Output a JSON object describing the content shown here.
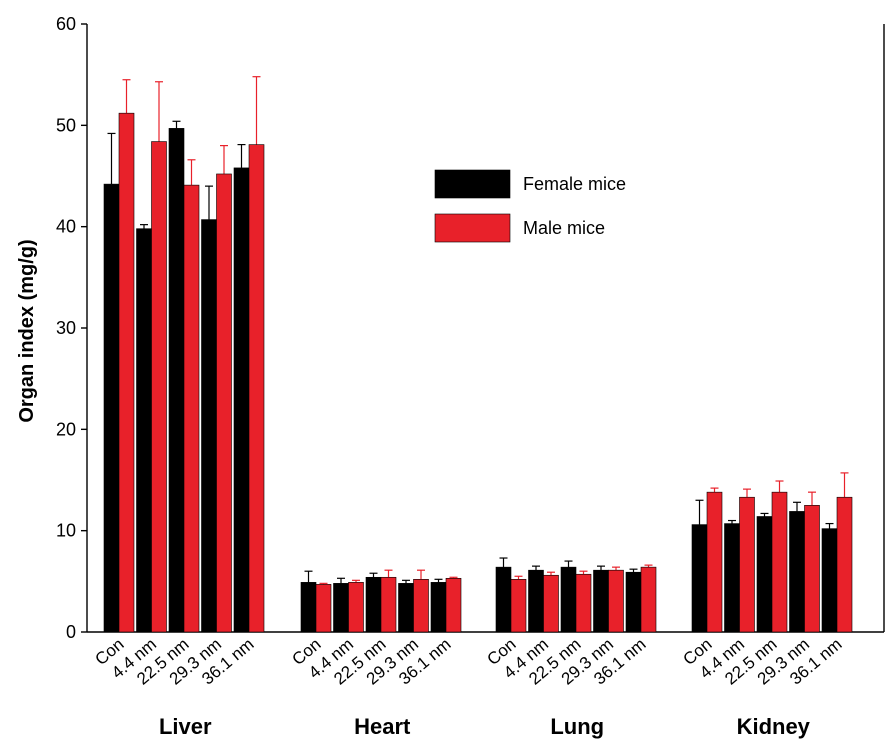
{
  "chart_data": {
    "type": "bar",
    "title": "",
    "xlabel": "",
    "ylabel": "Organ index (mg/g)",
    "ylim": [
      0,
      60
    ],
    "yticks": [
      0,
      10,
      20,
      30,
      40,
      50,
      60
    ],
    "grid": false,
    "legend_position": "upper-middle",
    "groups": [
      "Liver",
      "Heart",
      "Lung",
      "Kidney"
    ],
    "categories": [
      "Con",
      "4.4 nm",
      "22.5 nm",
      "29.3 nm",
      "36.1 nm"
    ],
    "series": [
      {
        "name": "Female mice",
        "color": "#000000",
        "values": [
          [
            44.2,
            39.8,
            49.7,
            40.7,
            45.8
          ],
          [
            4.9,
            4.8,
            5.4,
            4.8,
            4.9
          ],
          [
            6.4,
            6.1,
            6.4,
            6.1,
            5.9
          ],
          [
            10.6,
            10.7,
            11.4,
            11.9,
            10.2
          ]
        ],
        "errors": [
          [
            5.0,
            0.4,
            0.7,
            3.3,
            2.3
          ],
          [
            1.1,
            0.5,
            0.4,
            0.3,
            0.3
          ],
          [
            0.9,
            0.4,
            0.6,
            0.4,
            0.3
          ],
          [
            2.4,
            0.3,
            0.3,
            0.9,
            0.5
          ]
        ]
      },
      {
        "name": "Male mice",
        "color": "#e8212a",
        "values": [
          [
            51.2,
            48.4,
            44.1,
            45.2,
            48.1
          ],
          [
            4.7,
            4.9,
            5.4,
            5.2,
            5.3
          ],
          [
            5.2,
            5.6,
            5.7,
            6.1,
            6.4
          ],
          [
            13.8,
            13.3,
            13.8,
            12.5,
            13.3
          ]
        ],
        "errors": [
          [
            3.3,
            5.9,
            2.5,
            2.8,
            6.7
          ],
          [
            0.1,
            0.2,
            0.7,
            0.9,
            0.1
          ],
          [
            0.3,
            0.3,
            0.3,
            0.3,
            0.2
          ],
          [
            0.4,
            0.8,
            1.1,
            1.3,
            2.4
          ]
        ]
      }
    ]
  }
}
